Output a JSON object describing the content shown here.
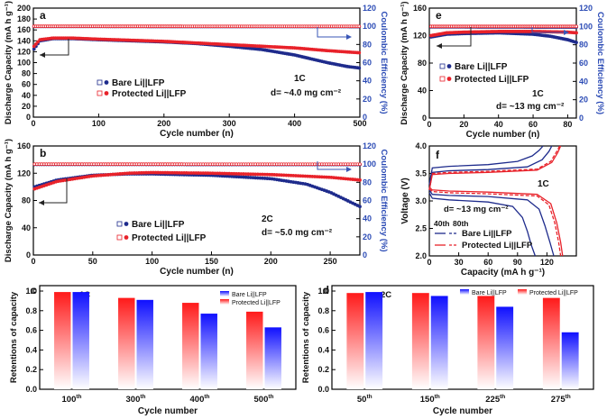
{
  "colors": {
    "bare": "#1e2b8c",
    "protected": "#e8222a",
    "axis_right": "#2b4bb5",
    "text": "#111111"
  },
  "chart_data": [
    {
      "id": "a",
      "type": "scatter",
      "panel_label": "a",
      "xlabel": "Cycle number (n)",
      "ylabel": "Discharge Capacity (mA h g⁻¹)",
      "ylabel_right": "Coulombic Efficiency (%)",
      "xlim": [
        0,
        500
      ],
      "ylim": [
        0,
        200
      ],
      "ylim_right": [
        0,
        120
      ],
      "xticks": [
        0,
        100,
        200,
        300,
        400,
        500
      ],
      "yticks": [
        0,
        20,
        40,
        60,
        80,
        100,
        120,
        140,
        160,
        180,
        200
      ],
      "yticks_right": [
        0,
        20,
        40,
        60,
        80,
        100,
        120
      ],
      "legend": [
        "Bare Li||LFP",
        "Protected Li||LFP"
      ],
      "annotations": [
        "1C",
        "d= ~4.0 mg cm⁻²"
      ],
      "series": [
        {
          "name": "Bare Li||LFP capacity",
          "axis": "left",
          "x": [
            1,
            10,
            30,
            60,
            100,
            150,
            200,
            250,
            300,
            350,
            400,
            450,
            480,
            500
          ],
          "y": [
            125,
            140,
            144,
            144,
            142,
            140,
            138,
            135,
            130,
            124,
            114,
            100,
            93,
            90
          ]
        },
        {
          "name": "Protected Li||LFP capacity",
          "axis": "left",
          "x": [
            1,
            10,
            30,
            60,
            100,
            150,
            200,
            250,
            300,
            350,
            400,
            450,
            500
          ],
          "y": [
            130,
            142,
            145,
            145,
            143,
            141,
            139,
            136,
            133,
            130,
            127,
            122,
            118
          ]
        },
        {
          "name": "Bare Li||LFP CE",
          "axis": "right",
          "x": [
            1,
            500
          ],
          "y": [
            99.8,
            99.6
          ]
        },
        {
          "name": "Protected Li||LFP CE",
          "axis": "right",
          "x": [
            1,
            500
          ],
          "y": [
            100,
            99.9
          ]
        }
      ]
    },
    {
      "id": "b",
      "type": "scatter",
      "panel_label": "b",
      "xlabel": "Cycle number (n)",
      "ylabel": "Discharge Capacity (mA h g⁻¹)",
      "ylabel_right": "Coulombic Efficiency (%)",
      "xlim": [
        0,
        275
      ],
      "ylim": [
        0,
        160
      ],
      "ylim_right": [
        0,
        120
      ],
      "xticks": [
        0,
        50,
        100,
        150,
        200,
        250
      ],
      "yticks": [
        0,
        40,
        80,
        120,
        160
      ],
      "yticks_right": [
        0,
        20,
        40,
        60,
        80,
        100,
        120
      ],
      "legend": [
        "Bare Li||LFP",
        "Protected Li||LFP"
      ],
      "annotations": [
        "2C",
        "d= ~5.0 mg cm⁻²"
      ],
      "series": [
        {
          "name": "Bare Li||LFP capacity",
          "axis": "left",
          "x": [
            1,
            20,
            50,
            80,
            100,
            150,
            200,
            230,
            250,
            275
          ],
          "y": [
            100,
            110,
            117,
            119,
            119,
            117,
            112,
            104,
            92,
            71
          ]
        },
        {
          "name": "Protected Li||LFP capacity",
          "axis": "left",
          "x": [
            1,
            20,
            50,
            80,
            100,
            150,
            200,
            250,
            275
          ],
          "y": [
            97,
            108,
            116,
            120,
            121,
            120,
            118,
            114,
            110
          ]
        },
        {
          "name": "Bare Li||LFP CE",
          "axis": "right",
          "x": [
            1,
            275
          ],
          "y": [
            99.7,
            99.5
          ]
        },
        {
          "name": "Protected Li||LFP CE",
          "axis": "right",
          "x": [
            1,
            275
          ],
          "y": [
            100,
            99.9
          ]
        }
      ]
    },
    {
      "id": "e",
      "type": "scatter",
      "panel_label": "e",
      "xlabel": "Cycle number (n)",
      "ylabel": "Discharge Capacity (mA h g⁻¹)",
      "ylabel_right": "Coulombic Efficiency (%)",
      "xlim": [
        0,
        85
      ],
      "ylim": [
        0,
        160
      ],
      "ylim_right": [
        0,
        120
      ],
      "xticks": [
        0,
        20,
        40,
        60,
        80
      ],
      "yticks": [
        0,
        40,
        80,
        120,
        160
      ],
      "yticks_right": [
        0,
        20,
        40,
        60,
        80,
        100,
        120
      ],
      "legend": [
        "Bare Li||LFP",
        "Protected Li||LFP"
      ],
      "annotations": [
        "1C",
        "d= ~13 mg cm⁻²"
      ],
      "series": [
        {
          "name": "Bare Li||LFP capacity",
          "axis": "left",
          "x": [
            1,
            10,
            20,
            40,
            60,
            70,
            80,
            85
          ],
          "y": [
            118,
            122,
            123,
            124,
            122,
            119,
            114,
            110
          ]
        },
        {
          "name": "Protected Li||LFP capacity",
          "axis": "left",
          "x": [
            1,
            10,
            20,
            40,
            60,
            80,
            85
          ],
          "y": [
            120,
            124,
            125,
            126,
            126,
            125,
            124
          ]
        },
        {
          "name": "Bare Li||LFP CE",
          "axis": "right",
          "x": [
            1,
            85
          ],
          "y": [
            99.5,
            99.2
          ]
        },
        {
          "name": "Protected Li||LFP CE",
          "axis": "right",
          "x": [
            1,
            85
          ],
          "y": [
            100,
            100
          ]
        }
      ]
    },
    {
      "id": "f",
      "type": "line",
      "panel_label": "f",
      "xlabel": "Capacity (mA h g⁻¹)",
      "ylabel": "Voltage (V)",
      "xlim": [
        0,
        150
      ],
      "ylim": [
        2.0,
        4.0
      ],
      "xticks": [
        0,
        30,
        60,
        90,
        120
      ],
      "yticks": [
        2.0,
        2.5,
        3.0,
        3.5,
        4.0
      ],
      "annotations": [
        "1C",
        "d= ~13 mg cm⁻²"
      ],
      "legend_header": [
        "40th",
        "80th"
      ],
      "legend": [
        "Bare Li||LFP",
        "Protected Li||LFP"
      ],
      "series": [
        {
          "name": "Bare 40th charge",
          "x": [
            0,
            3,
            20,
            60,
            100,
            115,
            122,
            125
          ],
          "y": [
            3.2,
            3.52,
            3.55,
            3.57,
            3.62,
            3.75,
            3.9,
            4.0
          ]
        },
        {
          "name": "Bare 40th discharge",
          "x": [
            0,
            3,
            20,
            60,
            100,
            112,
            118,
            123,
            127
          ],
          "y": [
            3.2,
            3.12,
            3.1,
            3.08,
            3.02,
            2.85,
            2.55,
            2.25,
            2.0
          ]
        },
        {
          "name": "Bare 80th charge",
          "x": [
            0,
            3,
            20,
            60,
            90,
            105,
            112,
            116
          ],
          "y": [
            3.3,
            3.6,
            3.63,
            3.66,
            3.72,
            3.82,
            3.92,
            4.0
          ]
        },
        {
          "name": "Bare 80th discharge",
          "x": [
            0,
            3,
            20,
            60,
            85,
            95,
            100,
            104,
            108
          ],
          "y": [
            3.15,
            3.05,
            3.02,
            2.98,
            2.9,
            2.7,
            2.45,
            2.2,
            2.0
          ]
        },
        {
          "name": "Protected 40th charge",
          "x": [
            0,
            3,
            20,
            60,
            110,
            125,
            131,
            134
          ],
          "y": [
            3.2,
            3.48,
            3.5,
            3.52,
            3.56,
            3.7,
            3.88,
            4.0
          ]
        },
        {
          "name": "Protected 40th discharge",
          "x": [
            0,
            3,
            20,
            60,
            110,
            124,
            130,
            134,
            136
          ],
          "y": [
            3.25,
            3.2,
            3.18,
            3.16,
            3.12,
            2.95,
            2.6,
            2.25,
            2.0
          ]
        },
        {
          "name": "Protected 80th charge",
          "x": [
            0,
            3,
            20,
            60,
            110,
            124,
            130,
            133
          ],
          "y": [
            3.2,
            3.5,
            3.52,
            3.54,
            3.58,
            3.72,
            3.9,
            4.0
          ]
        },
        {
          "name": "Protected 80th discharge",
          "x": [
            0,
            3,
            20,
            60,
            110,
            122,
            128,
            132,
            134
          ],
          "y": [
            3.22,
            3.17,
            3.15,
            3.13,
            3.09,
            2.93,
            2.6,
            2.25,
            2.0
          ]
        }
      ]
    },
    {
      "id": "c",
      "type": "bar",
      "panel_label": "c",
      "ylabel": "Retentions of capacity",
      "xlabel": "Cycle number",
      "ylim": [
        0,
        1.0
      ],
      "yticks": [
        0.0,
        0.2,
        0.4,
        0.6,
        0.8,
        1.0
      ],
      "rate": "1C",
      "categories": [
        "100th",
        "300th",
        "400th",
        "500th"
      ],
      "legend": [
        "Bare Li||LFP",
        "Protected Li||LFP"
      ],
      "series": [
        {
          "name": "Protected Li||LFP",
          "values": [
            0.99,
            0.93,
            0.88,
            0.79
          ]
        },
        {
          "name": "Bare Li||LFP",
          "values": [
            0.99,
            0.91,
            0.77,
            0.63
          ]
        }
      ]
    },
    {
      "id": "d",
      "type": "bar",
      "panel_label": "d",
      "ylabel": "Retentions of capacity",
      "xlabel": "Cycle number",
      "ylim": [
        0,
        1.0
      ],
      "yticks": [
        0.0,
        0.2,
        0.4,
        0.6,
        0.8,
        1.0
      ],
      "rate": "2C",
      "categories": [
        "50th",
        "150th",
        "225th",
        "275th"
      ],
      "legend": [
        "Bare Li||LFP",
        "Protected Li||LFP"
      ],
      "series": [
        {
          "name": "Protected Li||LFP",
          "values": [
            0.98,
            0.98,
            0.95,
            0.93
          ]
        },
        {
          "name": "Bare Li||LFP",
          "values": [
            0.99,
            0.95,
            0.84,
            0.58
          ]
        }
      ]
    }
  ]
}
